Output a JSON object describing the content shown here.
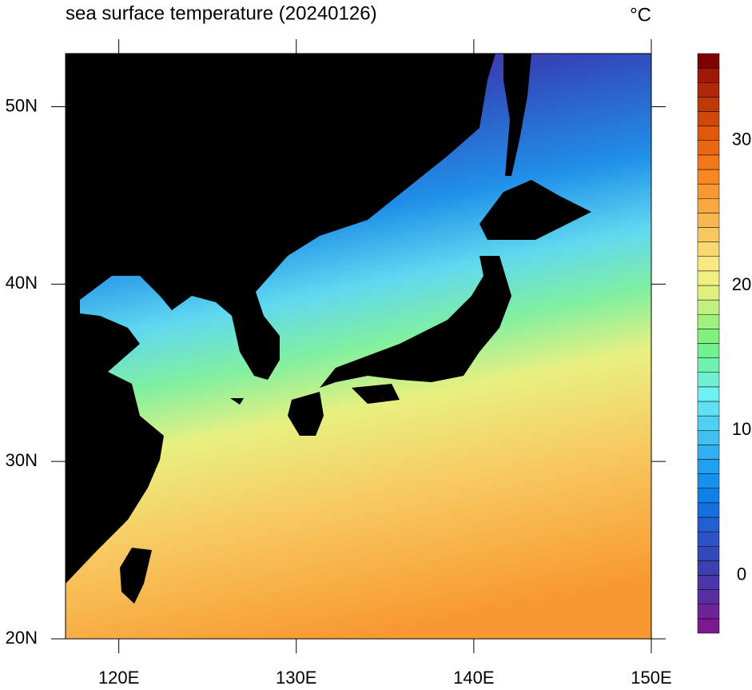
{
  "chart_data": {
    "type": "map",
    "title": "sea surface temperature (20240126)",
    "unit": "°C",
    "xlim": [
      117,
      150
    ],
    "ylim": [
      20,
      53
    ],
    "xticks": [
      {
        "value": 120,
        "label": "120E"
      },
      {
        "value": 130,
        "label": "130E"
      },
      {
        "value": 140,
        "label": "140E"
      },
      {
        "value": 150,
        "label": "150E"
      }
    ],
    "yticks": [
      {
        "value": 20,
        "label": "20N"
      },
      {
        "value": 30,
        "label": "30N"
      },
      {
        "value": 40,
        "label": "40N"
      },
      {
        "value": 50,
        "label": "50N"
      }
    ],
    "colorbar": {
      "range": [
        -4,
        36
      ],
      "ticks": [
        0,
        10,
        20,
        30
      ],
      "colors": [
        "#7b1a8c",
        "#6e2496",
        "#5a2da0",
        "#4b35a8",
        "#3b3fb0",
        "#3348bb",
        "#2c52c5",
        "#2060d2",
        "#1570de",
        "#1080e8",
        "#1890ee",
        "#20a0f0",
        "#30b0f0",
        "#40c0f0",
        "#50d0f0",
        "#60e0f5",
        "#70f0f0",
        "#70f0d0",
        "#70f0b0",
        "#70f090",
        "#80f080",
        "#a0f080",
        "#c0f080",
        "#e0f080",
        "#f0f080",
        "#f8e880",
        "#f8d870",
        "#f8c860",
        "#f8b850",
        "#f8a840",
        "#f89830",
        "#f88820",
        "#f07818",
        "#e86810",
        "#e05808",
        "#d04808",
        "#c03808",
        "#b02808",
        "#a01808",
        "#800000"
      ]
    }
  }
}
